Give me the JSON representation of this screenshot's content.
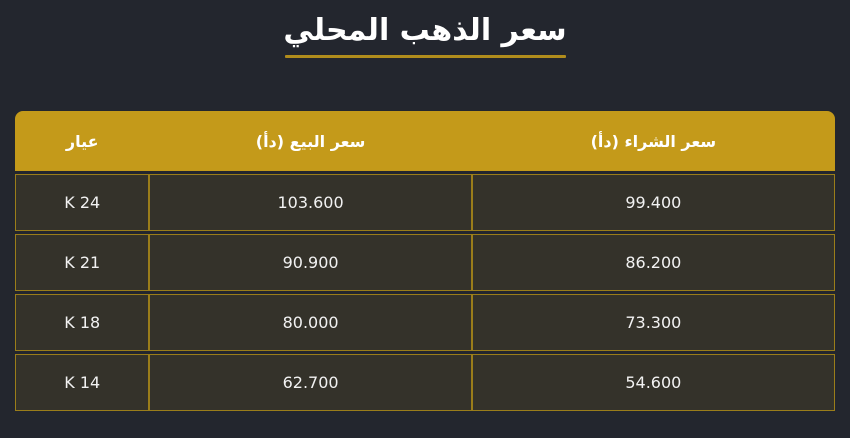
{
  "title": {
    "text": "سعر الذهب المحلي"
  },
  "table": {
    "columns": [
      {
        "key": "karat",
        "label": "عيار"
      },
      {
        "key": "sell",
        "label": "سعر البيع (دأ)"
      },
      {
        "key": "buy",
        "label": "سعر الشراء (دأ)"
      }
    ],
    "rows": [
      {
        "karat": "24 K",
        "sell": "103.600",
        "buy": "99.400"
      },
      {
        "karat": "21 K",
        "sell": "90.900",
        "buy": "86.200"
      },
      {
        "karat": "18 K",
        "sell": "80.000",
        "buy": "73.300"
      },
      {
        "karat": "14 K",
        "sell": "62.700",
        "buy": "54.600"
      }
    ]
  },
  "chart_data": {
    "type": "table",
    "title": "سعر الذهب المحلي",
    "columns": [
      "عيار",
      "سعر البيع (دأ)",
      "سعر الشراء (دأ)"
    ],
    "rows": [
      [
        "24 K",
        "103.600",
        "99.400"
      ],
      [
        "21 K",
        "90.900",
        "86.200"
      ],
      [
        "18 K",
        "80.000",
        "73.300"
      ],
      [
        "14 K",
        "62.700",
        "54.600"
      ]
    ]
  },
  "colors": {
    "page_background": "#23262e",
    "header_gold": "#c49a1a",
    "cell_background": "#34322a",
    "border_gold": "#9a7d1a",
    "title_underline": "#b08c1c",
    "text_white": "#ffffff"
  }
}
